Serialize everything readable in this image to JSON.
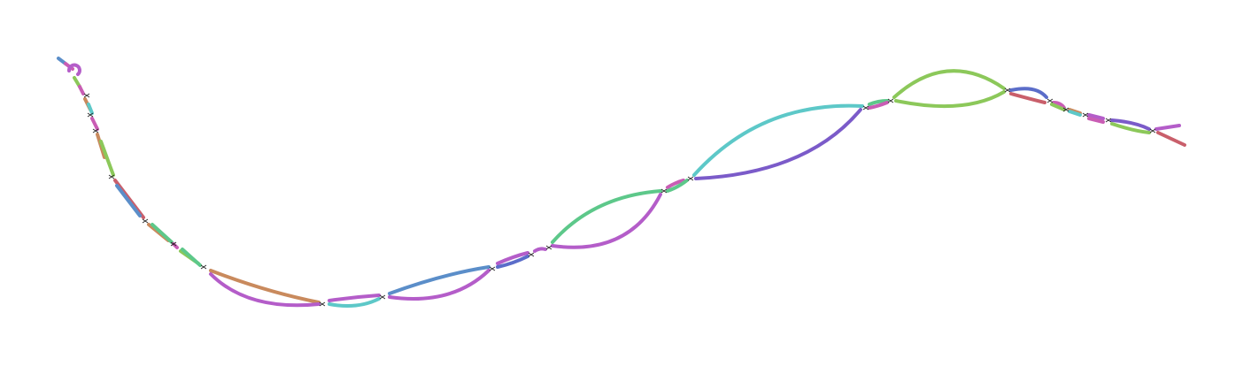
{
  "graph": {
    "palette": {
      "red": "#c95f6b",
      "orange": "#c98a5d",
      "green": "#8cc85a",
      "teal": "#5dc8c8",
      "blue": "#5b8ec9",
      "indigo": "#5b6dc9",
      "purple": "#7b5bc9",
      "magenta": "#b45dc9",
      "pink": "#c95db4",
      "mint": "#5dc88a"
    }
  }
}
